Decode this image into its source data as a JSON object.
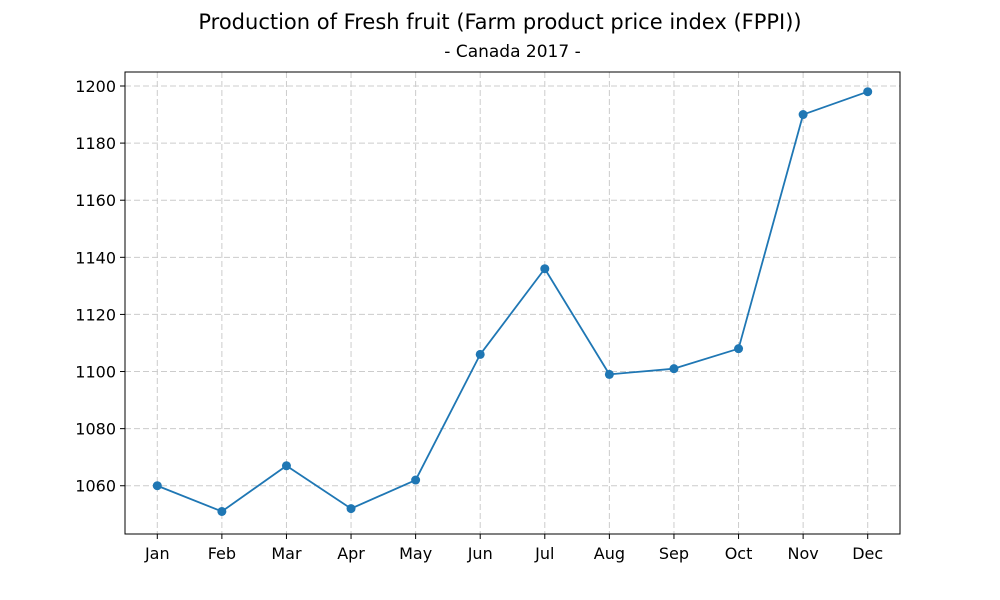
{
  "chart_data": {
    "type": "line",
    "title": "Production of Fresh fruit (Farm product price index (FPPI))",
    "subtitle": "- Canada 2017 -",
    "xlabel": "",
    "ylabel": "",
    "categories": [
      "Jan",
      "Feb",
      "Mar",
      "Apr",
      "May",
      "Jun",
      "Jul",
      "Aug",
      "Sep",
      "Oct",
      "Nov",
      "Dec"
    ],
    "series": [
      {
        "values": [
          1060,
          1051,
          1067,
          1052,
          1062,
          1106,
          1136,
          1099,
          1101,
          1108,
          1190,
          1198
        ]
      }
    ],
    "yticks": [
      1060,
      1080,
      1100,
      1120,
      1140,
      1160,
      1180,
      1200
    ],
    "ylim": [
      1043.1,
      1204.9
    ],
    "grid": true,
    "colors": {
      "line": "#1f77b4",
      "grid": "#cccccc",
      "axis": "#000000"
    }
  }
}
